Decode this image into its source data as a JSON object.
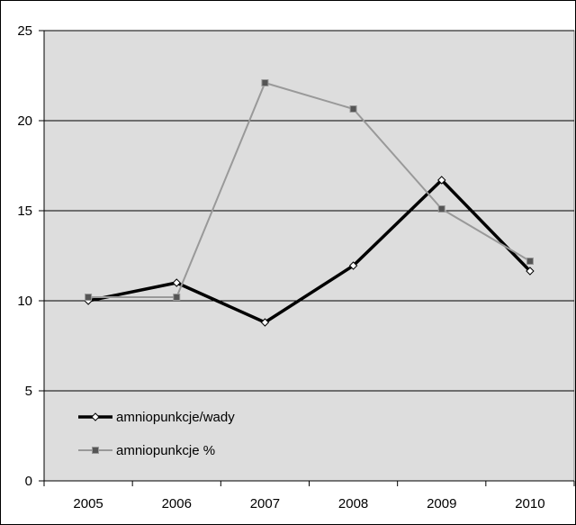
{
  "chart_data": {
    "type": "line",
    "title": "",
    "xlabel": "",
    "ylabel": "",
    "categories": [
      "2005",
      "2006",
      "2007",
      "2008",
      "2009",
      "2010"
    ],
    "ylim": [
      0,
      25
    ],
    "yticks": [
      "0",
      "5",
      "10",
      "15",
      "20",
      "25"
    ],
    "grid": true,
    "legend_position": "bottom-left",
    "plot_background": "#dddddd",
    "series": [
      {
        "name": "amniopunkcje/wady",
        "values": [
          10.0,
          11.0,
          8.8,
          11.95,
          16.7,
          11.65
        ],
        "color": "#000000",
        "marker": "diamond-hollow"
      },
      {
        "name": "amniopunkcje %",
        "values": [
          10.2,
          10.2,
          22.1,
          20.65,
          15.1,
          12.2
        ],
        "color": "#999999",
        "marker": "square-filled"
      }
    ]
  }
}
